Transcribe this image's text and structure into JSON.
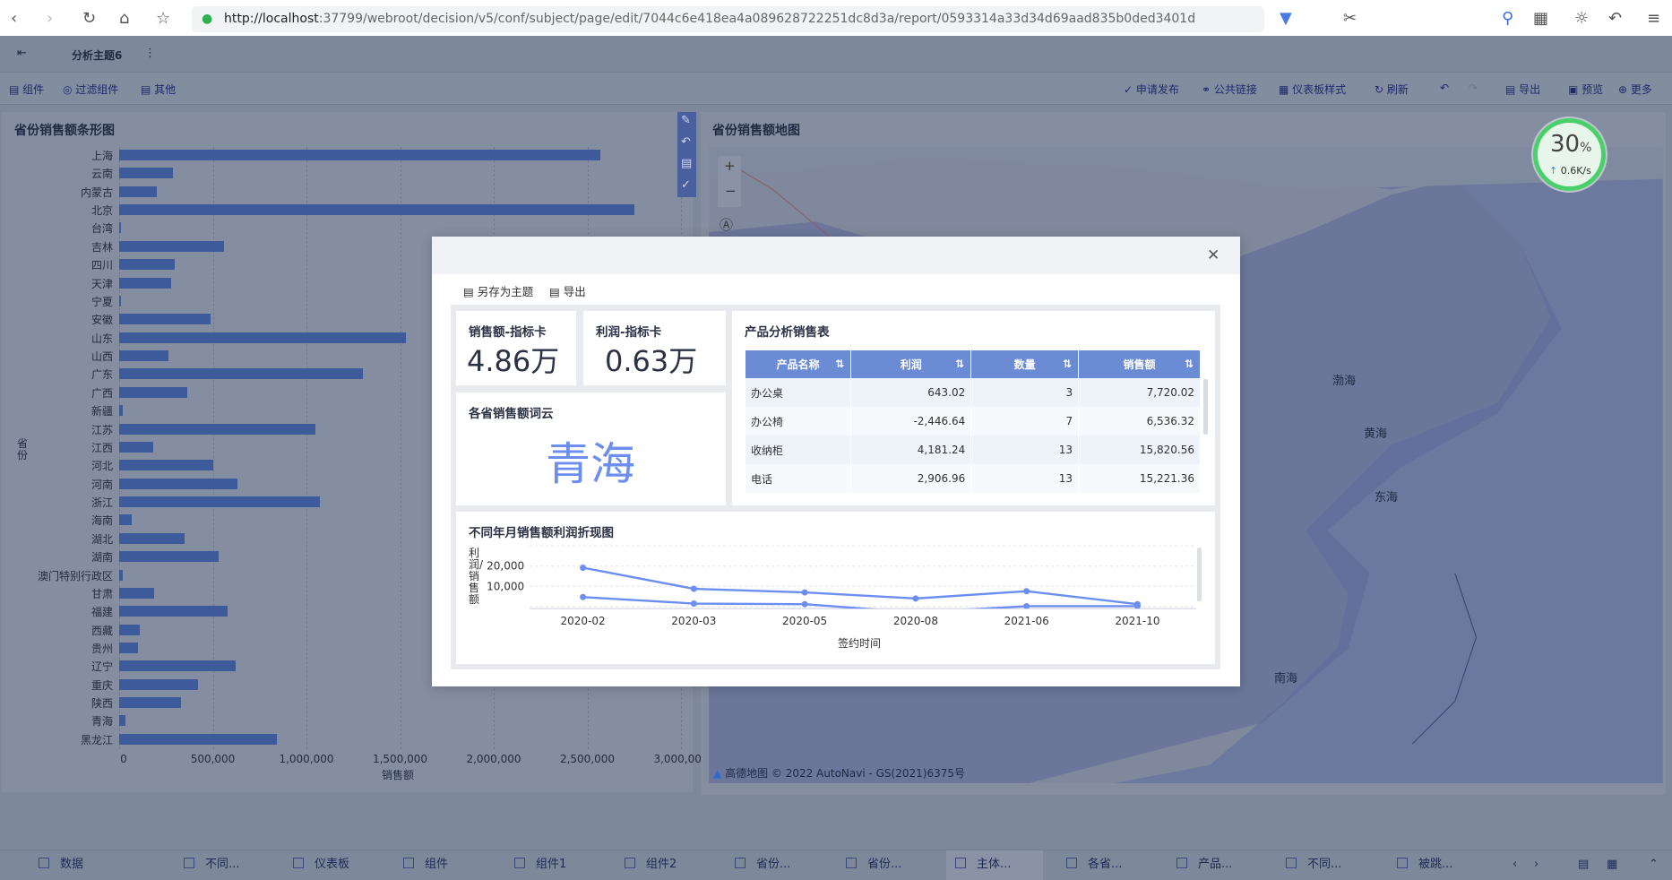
{
  "browser": {
    "url_host": "http://localhost",
    "url_rest": ":37799/webroot/decision/v5/conf/subject/page/edit/7044c6e418ea4a089628722251dc8d3a/report/0593314a33d34d69aad835b0ded3401d",
    "speed": {
      "percent": "30",
      "unit": "%",
      "rate": "0.6K/s"
    }
  },
  "topbar": {
    "title": "分析主题6"
  },
  "toolbar": {
    "left": [
      "组件",
      "过滤组件",
      "其他"
    ],
    "right": [
      "申请发布",
      "公共链接",
      "仪表板样式",
      "刷新",
      "导出",
      "预览",
      "更多"
    ]
  },
  "bar_chart": {
    "title": "省份销售额条形图",
    "chart_data": {
      "type": "bar",
      "orientation": "horizontal",
      "xlabel": "销售额",
      "ylabel": "省份",
      "xlim": [
        0,
        3000000
      ],
      "xticks": [
        "0",
        "500,000",
        "1,000,000",
        "1,500,000",
        "2,000,000",
        "2,500,000",
        "3,000,000"
      ],
      "categories": [
        "上海",
        "云南",
        "内蒙古",
        "北京",
        "台湾",
        "吉林",
        "四川",
        "天津",
        "宁夏",
        "安徽",
        "山东",
        "山西",
        "广东",
        "广西",
        "新疆",
        "江苏",
        "江西",
        "河北",
        "河南",
        "浙江",
        "海南",
        "湖北",
        "湖南",
        "澳门特别行政区",
        "甘肃",
        "福建",
        "西藏",
        "贵州",
        "辽宁",
        "重庆",
        "陕西",
        "青海",
        "黑龙江"
      ],
      "values": [
        2570000,
        285000,
        199000,
        2750000,
        5000,
        558000,
        296000,
        279000,
        11000,
        490000,
        1530000,
        262000,
        1300000,
        364000,
        17000,
        1050000,
        182000,
        501000,
        632000,
        1070000,
        68000,
        347000,
        530000,
        17000,
        188000,
        581000,
        108000,
        102000,
        621000,
        421000,
        330000,
        34000,
        843000
      ],
      "color": "#3d5a9a"
    }
  },
  "map": {
    "title": "省份销售额地图",
    "labels": [
      "渤海",
      "黄海",
      "东海",
      "南海"
    ],
    "attribution": "高德地图 © 2022 AutoNavi - GS(2021)6375号"
  },
  "dialog": {
    "actions": [
      "另存为主题",
      "导出"
    ],
    "sales_card": {
      "title": "销售额-指标卡",
      "value": "4.86万"
    },
    "profit_card": {
      "title": "利润-指标卡",
      "value": "0.63万"
    },
    "wordcloud": {
      "title": "各省销售额词云",
      "word": "青海",
      "color": "#6b8ef0"
    },
    "table": {
      "title": "产品分析销售表",
      "columns": [
        "产品名称",
        "利润",
        "数量",
        "销售额"
      ],
      "rows": [
        [
          "办公桌",
          "643.02",
          "3",
          "7,720.02"
        ],
        [
          "办公椅",
          "-2,446.64",
          "7",
          "6,536.32"
        ],
        [
          "收纳柜",
          "4,181.24",
          "13",
          "15,820.56"
        ],
        [
          "电话",
          "2,906.96",
          "13",
          "15,221.36"
        ]
      ]
    },
    "line_chart": {
      "title": "不同年月销售额利润折现图",
      "chart_data": {
        "type": "line",
        "xlabel": "签约时间",
        "ylabel": "利润/销售额",
        "x": [
          "2020-02",
          "2020-03",
          "2020-05",
          "2020-08",
          "2021-06",
          "2021-10"
        ],
        "yticks": [
          "20,000",
          "10,000"
        ],
        "ylim": [
          -1000,
          30000
        ],
        "series": [
          {
            "values": [
              19200,
              8800,
              7000,
              4000,
              7600,
              1200
            ]
          },
          {
            "values": [
              4700,
              1500,
              1200,
              -2900,
              200,
              200
            ]
          }
        ],
        "color": "#6b8ef0"
      }
    }
  },
  "bottom_tabs": [
    "数据",
    "不同...",
    "仪表板",
    "组件",
    "组件1",
    "组件2",
    "省份...",
    "省份...",
    "主体...",
    "各省...",
    "产品...",
    "不同...",
    "被跳..."
  ]
}
